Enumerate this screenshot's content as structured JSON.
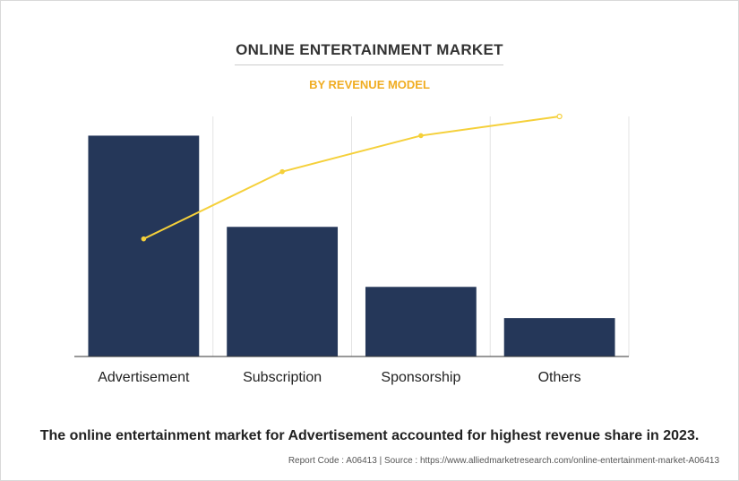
{
  "chart_data": {
    "type": "bar",
    "title": "ONLINE ENTERTAINMENT MARKET",
    "subtitle": "BY REVENUE MODEL",
    "categories": [
      "Advertisement",
      "Subscription",
      "Sponsorship",
      "Others"
    ],
    "series": [
      {
        "type": "bar",
        "values": [
          92,
          54,
          29,
          16
        ],
        "color": "#253759"
      },
      {
        "type": "line",
        "values": [
          49,
          77,
          92,
          100
        ],
        "color": "#f5d03a"
      }
    ],
    "ylim": [
      0,
      100
    ],
    "grid": "vertical",
    "legend": "none"
  },
  "summary": "The online entertainment market for Advertisement accounted for highest revenue share in 2023.",
  "source": "Report Code : A06413  |  Source : https://www.alliedmarketresearch.com/online-entertainment-market-A06413"
}
